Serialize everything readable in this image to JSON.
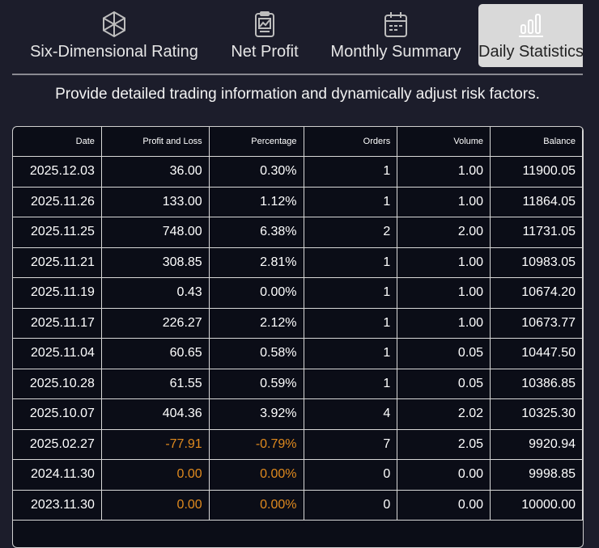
{
  "tabs": [
    {
      "label": "Six-Dimensional Rating",
      "icon": "hexagon-rating-icon",
      "active": false
    },
    {
      "label": "Net Profit",
      "icon": "clipboard-chart-icon",
      "active": false
    },
    {
      "label": "Monthly Summary",
      "icon": "calendar-icon",
      "active": false
    },
    {
      "label": "Daily Statistics",
      "icon": "bar-chart-icon",
      "active": true
    }
  ],
  "subtitle": "Provide detailed trading information and dynamically adjust risk factors.",
  "table": {
    "headers": [
      "Date",
      "Profit and Loss",
      "Percentage",
      "Orders",
      "Volume",
      "Balance"
    ],
    "rows": [
      [
        "2025.12.03",
        "36.00",
        "0.30%",
        "1",
        "1.00",
        "11900.05"
      ],
      [
        "2025.11.26",
        "133.00",
        "1.12%",
        "1",
        "1.00",
        "11864.05"
      ],
      [
        "2025.11.25",
        "748.00",
        "6.38%",
        "2",
        "2.00",
        "11731.05"
      ],
      [
        "2025.11.21",
        "308.85",
        "2.81%",
        "1",
        "1.00",
        "10983.05"
      ],
      [
        "2025.11.19",
        "0.43",
        "0.00%",
        "1",
        "1.00",
        "10674.20"
      ],
      [
        "2025.11.17",
        "226.27",
        "2.12%",
        "1",
        "1.00",
        "10673.77"
      ],
      [
        "2025.11.04",
        "60.65",
        "0.58%",
        "1",
        "0.05",
        "10447.50"
      ],
      [
        "2025.10.28",
        "61.55",
        "0.59%",
        "1",
        "0.05",
        "10386.85"
      ],
      [
        "2025.10.07",
        "404.36",
        "3.92%",
        "4",
        "2.02",
        "10325.30"
      ],
      [
        "2025.02.27",
        "-77.91",
        "-0.79%",
        "7",
        "2.05",
        "9920.94"
      ],
      [
        "2024.11.30",
        "0.00",
        "0.00%",
        "0",
        "0.00",
        "9998.85"
      ],
      [
        "2023.11.30",
        "0.00",
        "0.00%",
        "0",
        "0.00",
        "10000.00"
      ]
    ],
    "highlight_rows": [
      9,
      10,
      11
    ],
    "highlight_color": "#e08a1e"
  }
}
